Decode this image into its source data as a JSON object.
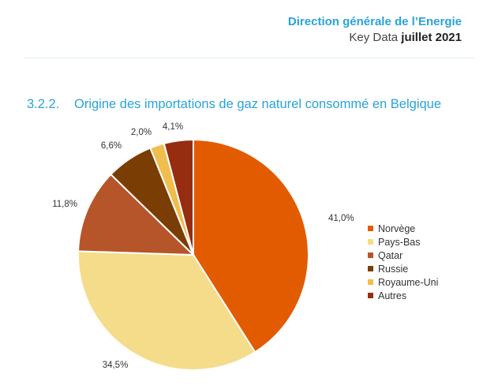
{
  "header": {
    "org": "Direction générale de l’Energie",
    "doc": "Key Data",
    "date": "juillet 2021"
  },
  "section": {
    "number": "3.2.2.",
    "title": "Origine des importations de gaz naturel consommé en Belgique"
  },
  "chart_data": {
    "type": "pie",
    "title": "Origine des importations de gaz naturel consommé en Belgique",
    "legend_position": "right",
    "categories": [
      "Norvège",
      "Pays-Bas",
      "Qatar",
      "Russie",
      "Royaume-Uni",
      "Autres"
    ],
    "values": [
      41.0,
      34.5,
      11.8,
      6.6,
      2.0,
      4.1
    ],
    "value_labels": [
      "41,0%",
      "34,5%",
      "11,8%",
      "6,6%",
      "2,0%",
      "4,1%"
    ],
    "colors": [
      "#E35B00",
      "#F5DC8A",
      "#B6552A",
      "#7A3D04",
      "#F0BE4E",
      "#962D10"
    ]
  }
}
